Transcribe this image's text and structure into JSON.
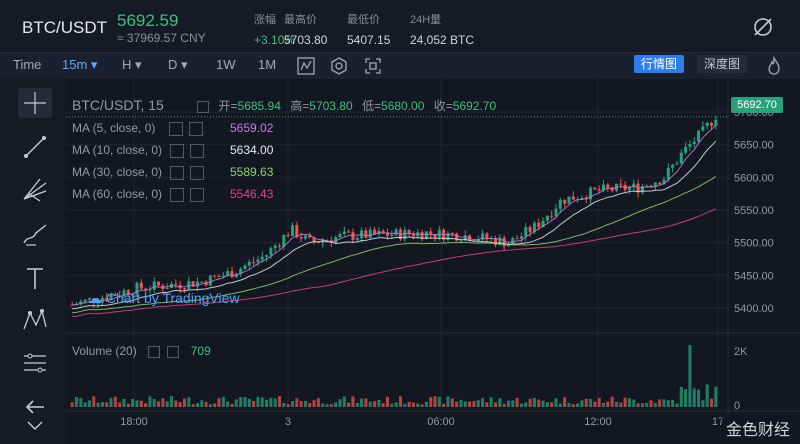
{
  "header": {
    "pair": "BTC/USDT",
    "price": "5692.59",
    "cny": "≈ 37969.57 CNY",
    "stats": [
      {
        "label": "涨幅",
        "value": "+3.10%"
      },
      {
        "label": "最高价",
        "value": "5703.80"
      },
      {
        "label": "最低价",
        "value": "5407.15"
      },
      {
        "label": "24H量",
        "value": "24,052 BTC"
      }
    ]
  },
  "toolbar": {
    "time_label": "Time",
    "interval": "15m",
    "items": [
      "H",
      "D",
      "1W",
      "1M"
    ],
    "tab_market": "行情图",
    "tab_depth": "深度图"
  },
  "chart": {
    "legend_title": "BTC/USDT, 15",
    "ohlc": {
      "open_label": "开=",
      "open": "5685.94",
      "high_label": "高=",
      "high": "5703.80",
      "low_label": "低=",
      "low": "5680.00",
      "close_label": "收=",
      "close": "5692.70"
    },
    "ma": [
      {
        "label": "MA (5, close, 0)",
        "value": "5659.02",
        "color": "#c77ee0"
      },
      {
        "label": "MA (10, close, 0)",
        "value": "5634.00",
        "color": "#e6e8ec"
      },
      {
        "label": "MA (30, close, 0)",
        "value": "5589.63",
        "color": "#8fd36d"
      },
      {
        "label": "MA (60, close, 0)",
        "value": "5546.43",
        "color": "#e0448a"
      }
    ],
    "price_tag": "5692.70",
    "y_ticks": [
      "5700.00",
      "5650.00",
      "5600.00",
      "5550.00",
      "5500.00",
      "5450.00",
      "5400.00"
    ],
    "volume_label": "Volume (20)",
    "volume_value": "709",
    "vol_ticks": [
      "2K",
      "0"
    ],
    "x_ticks": [
      "18:00",
      "3",
      "06:00",
      "12:00",
      "17"
    ],
    "watermark": "Chart by TradingView"
  },
  "brand": "金色财经",
  "colors": {
    "up": "#26a17a",
    "down": "#ef5350",
    "accent": "#2f7de8"
  }
}
